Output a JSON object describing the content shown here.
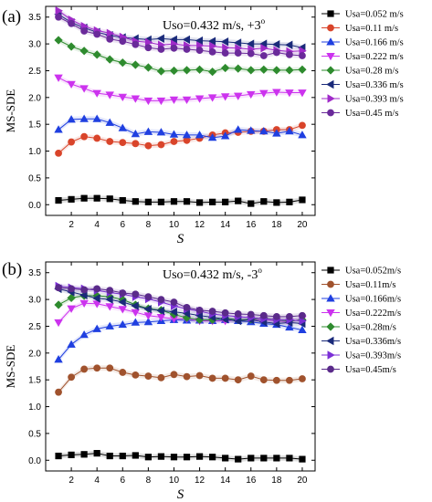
{
  "panels": [
    {
      "id": "a",
      "label": "(a)",
      "annotation": "Uso=0.432 m/s, +3",
      "annotation_degree": "o",
      "chart_data": {
        "type": "line",
        "xlabel": "S",
        "ylabel": "MS-SDE",
        "xlim": [
          0,
          21
        ],
        "ylim": [
          -0.2,
          3.7
        ],
        "xticks": [
          2,
          4,
          6,
          8,
          10,
          12,
          14,
          16,
          18,
          20
        ],
        "yticks": [
          0.0,
          0.5,
          1.0,
          1.5,
          2.0,
          2.5,
          3.0,
          3.5
        ],
        "legend_position": "right",
        "x": [
          1,
          2,
          3,
          4,
          5,
          6,
          7,
          8,
          9,
          10,
          11,
          12,
          13,
          14,
          15,
          16,
          17,
          18,
          19,
          20
        ],
        "series": [
          {
            "name": "Usa=0.052 m/s",
            "marker": "square",
            "color": "#000000",
            "values": [
              0.08,
              0.1,
              0.12,
              0.12,
              0.11,
              0.08,
              0.06,
              0.05,
              0.05,
              0.06,
              0.06,
              0.04,
              0.05,
              0.05,
              0.07,
              0.02,
              0.06,
              0.04,
              0.05,
              0.09
            ]
          },
          {
            "name": "Usa=0.11 m/s",
            "marker": "circle",
            "color": "#d9442a",
            "values": [
              0.96,
              1.17,
              1.27,
              1.24,
              1.18,
              1.16,
              1.14,
              1.1,
              1.12,
              1.18,
              1.2,
              1.24,
              1.3,
              1.34,
              1.35,
              1.37,
              1.37,
              1.4,
              1.4,
              1.48
            ]
          },
          {
            "name": "Usa=0.166 m/s",
            "marker": "triangle-up",
            "color": "#1f3fe0",
            "values": [
              1.4,
              1.59,
              1.6,
              1.6,
              1.53,
              1.43,
              1.32,
              1.36,
              1.35,
              1.31,
              1.3,
              1.3,
              1.25,
              1.28,
              1.4,
              1.38,
              1.37,
              1.33,
              1.37,
              1.3
            ]
          },
          {
            "name": "Usa=0.222 m/s",
            "marker": "triangle-down",
            "color": "#cc33ee",
            "values": [
              2.37,
              2.25,
              2.17,
              2.08,
              2.05,
              2.01,
              1.98,
              1.94,
              1.94,
              1.96,
              1.96,
              1.98,
              2.0,
              2.02,
              2.03,
              2.06,
              2.08,
              2.1,
              2.09,
              2.09
            ]
          },
          {
            "name": "Usa=0.28 m/s",
            "marker": "diamond",
            "color": "#2e8b2e",
            "values": [
              3.07,
              2.95,
              2.87,
              2.8,
              2.71,
              2.65,
              2.61,
              2.56,
              2.49,
              2.5,
              2.51,
              2.52,
              2.48,
              2.55,
              2.54,
              2.51,
              2.52,
              2.51,
              2.51,
              2.52
            ]
          },
          {
            "name": "Usa=0.336 m/s",
            "marker": "triangle-left",
            "color": "#1a2a7a",
            "values": [
              3.55,
              3.4,
              3.3,
              3.22,
              3.16,
              3.12,
              3.1,
              3.08,
              3.1,
              3.08,
              3.08,
              3.06,
              3.05,
              3.04,
              3.02,
              3.0,
              3.0,
              2.99,
              2.98,
              2.93
            ]
          },
          {
            "name": "Usa=0.393 m/s",
            "marker": "triangle-right",
            "color": "#a02bc9",
            "values": [
              3.62,
              3.45,
              3.33,
              3.25,
              3.2,
              3.13,
              3.05,
              3.03,
              2.98,
              3.0,
              2.97,
              2.97,
              2.96,
              2.93,
              2.92,
              2.9,
              2.92,
              2.88,
              2.86,
              2.87
            ]
          },
          {
            "name": "Usa=0.45 m/s",
            "marker": "circle",
            "color": "#6a2a9a",
            "values": [
              3.5,
              3.38,
              3.24,
              3.18,
              3.09,
              3.05,
              2.99,
              2.93,
              2.9,
              2.92,
              2.9,
              2.88,
              2.85,
              2.83,
              2.83,
              2.82,
              2.78,
              2.84,
              2.8,
              2.78
            ]
          }
        ]
      }
    },
    {
      "id": "b",
      "label": "(b)",
      "annotation": "Uso=0.432 m/s, -3",
      "annotation_degree": "o",
      "chart_data": {
        "type": "line",
        "xlabel": "S",
        "ylabel": "MS-SDE",
        "xlim": [
          0,
          21
        ],
        "ylim": [
          -0.2,
          3.7
        ],
        "xticks": [
          2,
          4,
          6,
          8,
          10,
          12,
          14,
          16,
          18,
          20
        ],
        "yticks": [
          0.0,
          0.5,
          1.0,
          1.5,
          2.0,
          2.5,
          3.0,
          3.5
        ],
        "legend_position": "right",
        "x": [
          1,
          2,
          3,
          4,
          5,
          6,
          7,
          8,
          9,
          10,
          11,
          12,
          13,
          14,
          15,
          16,
          17,
          18,
          19,
          20
        ],
        "series": [
          {
            "name": "Usa=0.052m/s",
            "marker": "square",
            "color": "#000000",
            "values": [
              0.08,
              0.1,
              0.11,
              0.13,
              0.08,
              0.08,
              0.09,
              0.06,
              0.07,
              0.06,
              0.06,
              0.07,
              0.06,
              0.04,
              0.02,
              0.04,
              0.04,
              0.04,
              0.04,
              0.02
            ]
          },
          {
            "name": "Usa=0.11m/s",
            "marker": "circle",
            "color": "#a0522d",
            "values": [
              1.27,
              1.55,
              1.7,
              1.72,
              1.72,
              1.64,
              1.59,
              1.57,
              1.54,
              1.6,
              1.56,
              1.58,
              1.53,
              1.53,
              1.5,
              1.57,
              1.5,
              1.49,
              1.49,
              1.52
            ]
          },
          {
            "name": "Usa=0.166m/s",
            "marker": "triangle-up",
            "color": "#1f3fe0",
            "values": [
              1.88,
              2.16,
              2.34,
              2.45,
              2.5,
              2.53,
              2.57,
              2.58,
              2.6,
              2.62,
              2.61,
              2.61,
              2.6,
              2.62,
              2.6,
              2.58,
              2.55,
              2.53,
              2.48,
              2.43
            ]
          },
          {
            "name": "Usa=0.222m/s",
            "marker": "triangle-down",
            "color": "#cc33ee",
            "values": [
              2.57,
              2.83,
              2.93,
              2.92,
              2.87,
              2.82,
              2.76,
              2.7,
              2.67,
              2.64,
              2.64,
              2.6,
              2.6,
              2.6,
              2.62,
              2.63,
              2.62,
              2.6,
              2.58,
              2.64
            ]
          },
          {
            "name": "Usa=0.28m/s",
            "marker": "diamond",
            "color": "#2e8b2e",
            "values": [
              2.9,
              3.03,
              3.07,
              3.07,
              3.05,
              3.0,
              2.9,
              2.83,
              2.8,
              2.72,
              2.66,
              2.62,
              2.62,
              2.65,
              2.62,
              2.63,
              2.65,
              2.62,
              2.6,
              2.62
            ]
          },
          {
            "name": "Usa=0.336m/s",
            "marker": "triangle-left",
            "color": "#1a2a7a",
            "values": [
              3.2,
              3.14,
              3.08,
              3.02,
              3.0,
              2.95,
              2.88,
              2.82,
              2.79,
              2.77,
              2.74,
              2.7,
              2.67,
              2.63,
              2.6,
              2.62,
              2.58,
              2.55,
              2.57,
              2.55
            ]
          },
          {
            "name": "Usa=0.393m/s",
            "marker": "triangle-right",
            "color": "#7b2fd6",
            "values": [
              3.25,
              3.22,
              3.2,
              3.17,
              3.13,
              3.1,
              3.05,
              3.01,
              2.95,
              2.88,
              2.82,
              2.78,
              2.73,
              2.7,
              2.68,
              2.66,
              2.64,
              2.62,
              2.62,
              2.6
            ]
          },
          {
            "name": "Usa=0.45m/s",
            "marker": "circle",
            "color": "#5a2a8a",
            "values": [
              3.22,
              3.2,
              3.18,
              3.2,
              3.17,
              3.12,
              3.1,
              3.05,
              3.0,
              2.95,
              2.85,
              2.8,
              2.78,
              2.75,
              2.73,
              2.72,
              2.7,
              2.68,
              2.68,
              2.7
            ]
          }
        ]
      }
    }
  ]
}
